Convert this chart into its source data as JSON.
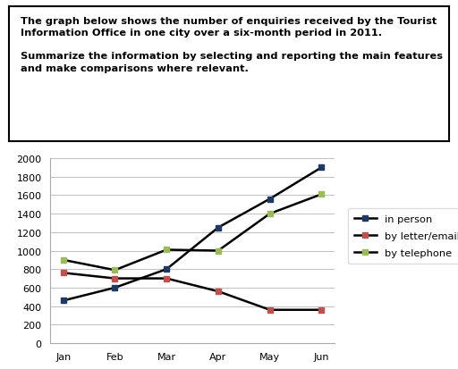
{
  "months": [
    "Jan",
    "Feb",
    "Mar",
    "Apr",
    "May",
    "Jun"
  ],
  "in_person": [
    460,
    600,
    800,
    1250,
    1560,
    1900
  ],
  "by_letter_email": [
    760,
    700,
    700,
    560,
    360,
    360
  ],
  "by_telephone": [
    900,
    790,
    1010,
    1000,
    1400,
    1610
  ],
  "in_person_color": "#1f3864",
  "by_letter_color": "#c0504d",
  "by_telephone_color": "#9bbb59",
  "line_color": "#000000",
  "ylim": [
    0,
    2000
  ],
  "yticks": [
    0,
    200,
    400,
    600,
    800,
    1000,
    1200,
    1400,
    1600,
    1800,
    2000
  ],
  "legend_labels": [
    "in person",
    "by letter/email",
    "by telephone"
  ],
  "title_line1": "The graph below shows the number of enquiries received by the Tourist",
  "title_line2": "Information Office in one city over a six-month period in 2011.",
  "title_line3": "",
  "title_line4": "Summarize the information by selecting and reporting the main features",
  "title_line5": "and make comparisons where relevant.",
  "grid_color": "#c0c0c0",
  "marker_style": "s",
  "marker_size": 5,
  "linewidth": 1.8,
  "title_fontsize": 8.2,
  "tick_fontsize": 8,
  "legend_fontsize": 8.2
}
